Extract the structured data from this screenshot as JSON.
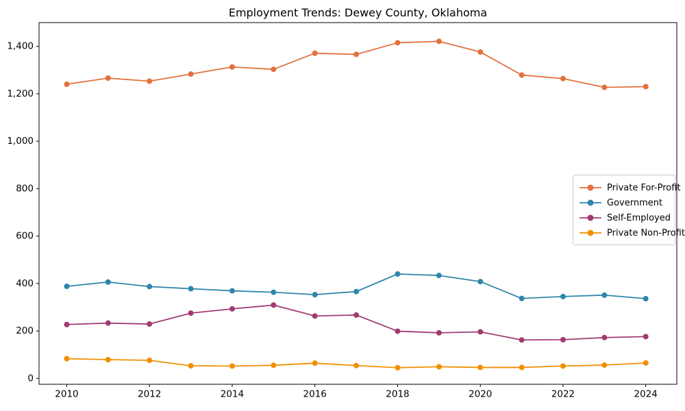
{
  "chart_data": {
    "type": "line",
    "title": "Employment Trends: Dewey County, Oklahoma",
    "xlabel": "",
    "ylabel": "",
    "grid": false,
    "legend_position": "center right",
    "marker": "circle",
    "xlim": [
      2009.33,
      2024.75
    ],
    "ylim": [
      -25,
      1500
    ],
    "xticks": [
      2010,
      2012,
      2014,
      2016,
      2018,
      2020,
      2022,
      2024
    ],
    "yticks": [
      0,
      200,
      400,
      600,
      800,
      1000,
      1200,
      1400
    ],
    "ytick_labels": [
      "0",
      "200",
      "400",
      "600",
      "800",
      "1,000",
      "1,200",
      "1,400"
    ],
    "x": [
      2010,
      2011,
      2012,
      2013,
      2014,
      2015,
      2016,
      2017,
      2018,
      2019,
      2020,
      2021,
      2022,
      2023,
      2024
    ],
    "series": [
      {
        "name": "Private For-Profit",
        "color": "#E2713B",
        "values": [
          1240,
          1266,
          1253,
          1283,
          1313,
          1303,
          1371,
          1366,
          1415,
          1421,
          1376,
          1279,
          1264,
          1227,
          1230
        ]
      },
      {
        "name": "Government",
        "color": "#2E86AB",
        "values": [
          388,
          406,
          387,
          378,
          369,
          363,
          353,
          366,
          440,
          434,
          408,
          337,
          345,
          351,
          336
        ]
      },
      {
        "name": "Self-Employed",
        "color": "#A23B72",
        "values": [
          227,
          233,
          229,
          275,
          293,
          309,
          263,
          267,
          199,
          192,
          196,
          162,
          163,
          172,
          176
        ]
      },
      {
        "name": "Private Non-Profit",
        "color": "#F18F01",
        "values": [
          83,
          79,
          76,
          53,
          52,
          55,
          64,
          54,
          45,
          49,
          46,
          46,
          52,
          56,
          65
        ]
      }
    ]
  }
}
